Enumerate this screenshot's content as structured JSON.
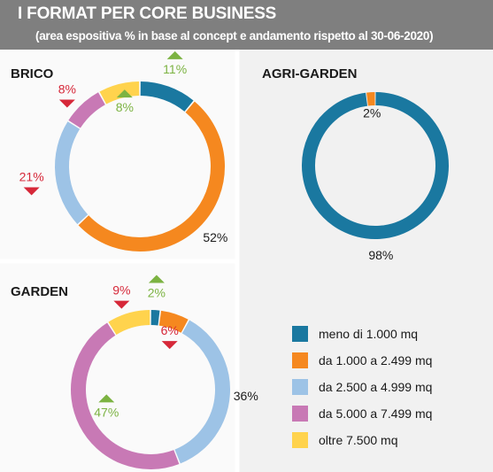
{
  "header": {
    "title": "I FORMAT PER CORE BUSINESS",
    "subtitle": "(area espositiva % in base al concept  e andamento rispetto al 30-06-2020)"
  },
  "colors": {
    "meno_1000": "#1a78a0",
    "da_1000": "#f5881f",
    "da_2500": "#9dc3e6",
    "da_5000": "#c879b5",
    "oltre_7500": "#ffd34d",
    "up": "#7cb342",
    "down": "#d62839",
    "neutral": "#1a1a1a",
    "panel_bg": "#f1f1f1"
  },
  "legend": [
    {
      "label": "meno di 1.000 mq",
      "color": "#1a78a0"
    },
    {
      "label": "da 1.000 a 2.499 mq",
      "color": "#f5881f"
    },
    {
      "label": "da 2.500 a 4.999 mq",
      "color": "#9dc3e6"
    },
    {
      "label": "da 5.000 a 7.499 mq",
      "color": "#c879b5"
    },
    {
      "label": "oltre 7.500 mq",
      "color": "#ffd34d"
    }
  ],
  "chart_data": [
    {
      "type": "pie",
      "title": "BRICO",
      "categories": [
        "meno di 1.000 mq",
        "da 1.000 a 2.499 mq",
        "da 2.500 a 4.999 mq",
        "da 5.000 a 7.499 mq",
        "oltre 7.500 mq"
      ],
      "values": [
        11,
        52,
        21,
        8,
        8
      ],
      "labels": [
        "11%",
        "52%",
        "21%",
        "8%",
        "8%"
      ],
      "trend": [
        "up",
        "none",
        "down",
        "down",
        "up"
      ]
    },
    {
      "type": "pie",
      "title": "AGRI-GARDEN",
      "categories": [
        "meno di 1.000 mq",
        "da 1.000 a 2.499 mq"
      ],
      "values": [
        98,
        2
      ],
      "labels": [
        "98%",
        "2%"
      ],
      "trend": [
        "none",
        "none"
      ]
    },
    {
      "type": "pie",
      "title": "GARDEN",
      "categories": [
        "meno di 1.000 mq",
        "da 1.000 a 2.499 mq",
        "da 2.500 a 4.999 mq",
        "da 5.000 a 7.499 mq",
        "oltre 7.500 mq"
      ],
      "values": [
        2,
        6,
        36,
        47,
        9
      ],
      "labels": [
        "2%",
        "6%",
        "36%",
        "47%",
        "9%"
      ],
      "trend": [
        "up",
        "down",
        "none",
        "up",
        "down"
      ]
    }
  ]
}
